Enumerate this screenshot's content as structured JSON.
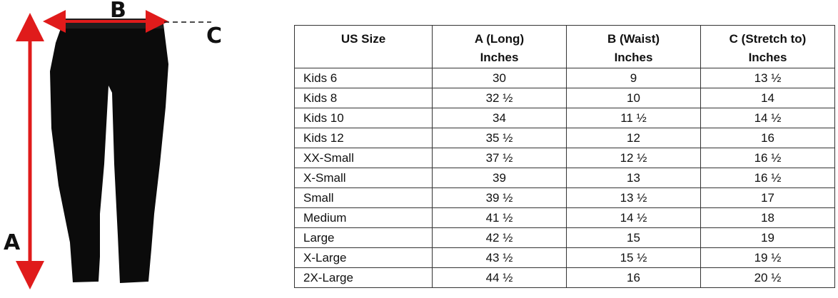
{
  "diagram": {
    "labels": {
      "a": "A",
      "b": "B",
      "c": "C"
    }
  },
  "table": {
    "headers": [
      [
        "US Size"
      ],
      [
        "A (Long)",
        "Inches"
      ],
      [
        "B (Waist)",
        "Inches"
      ],
      [
        "C (Stretch to)",
        "Inches"
      ]
    ],
    "rows": [
      [
        "Kids 6",
        "30",
        "9",
        "13 ½"
      ],
      [
        "Kids 8",
        "32 ½",
        "10",
        "14"
      ],
      [
        "Kids 10",
        "34",
        "11 ½",
        "14 ½"
      ],
      [
        "Kids 12",
        "35 ½",
        "12",
        "16"
      ],
      [
        "XX-Small",
        "37 ½",
        "12 ½",
        "16 ½"
      ],
      [
        "X-Small",
        "39",
        "13",
        "16 ½"
      ],
      [
        "Small",
        "39 ½",
        "13 ½",
        "17"
      ],
      [
        "Medium",
        "41 ½",
        "14 ½",
        "18"
      ],
      [
        "Large",
        "42 ½",
        "15",
        "19"
      ],
      [
        "X-Large",
        "43 ½",
        "15 ½",
        "19 ½"
      ],
      [
        "2X-Large",
        "44 ½",
        "16",
        "20 ½"
      ]
    ]
  }
}
